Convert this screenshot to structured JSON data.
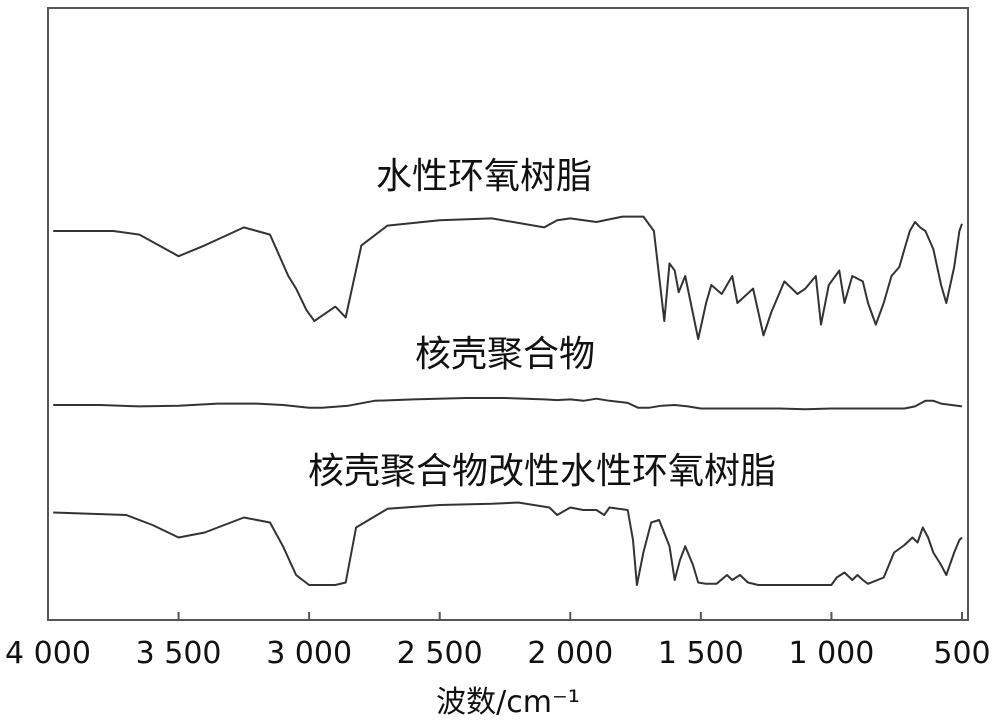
{
  "chart_data": {
    "type": "line",
    "xlabel": "波数/cm⁻¹",
    "ylabel": "",
    "xlim": [
      4000,
      500
    ],
    "x_reversed": true,
    "grid": false,
    "legend": "none",
    "xticks": [
      4000,
      3500,
      3000,
      2500,
      2000,
      1500,
      1000,
      500
    ],
    "xtick_labels": [
      "4 000",
      "3 500",
      "3 000",
      "2 500",
      "2 000",
      "1 500",
      "1 000",
      "500"
    ],
    "y_units": "arbitrary transmittance (higher = more transmittance)",
    "series": [
      {
        "name": "水性环氧树脂",
        "color": "#333333",
        "points": [
          [
            3980,
            0.8
          ],
          [
            3750,
            0.8
          ],
          [
            3650,
            0.78
          ],
          [
            3500,
            0.66
          ],
          [
            3400,
            0.72
          ],
          [
            3250,
            0.82
          ],
          [
            3150,
            0.78
          ],
          [
            3080,
            0.55
          ],
          [
            3050,
            0.48
          ],
          [
            3010,
            0.36
          ],
          [
            2980,
            0.3
          ],
          [
            2940,
            0.34
          ],
          [
            2900,
            0.38
          ],
          [
            2860,
            0.32
          ],
          [
            2800,
            0.72
          ],
          [
            2700,
            0.83
          ],
          [
            2500,
            0.86
          ],
          [
            2300,
            0.87
          ],
          [
            2100,
            0.82
          ],
          [
            2050,
            0.86
          ],
          [
            2000,
            0.87
          ],
          [
            1900,
            0.85
          ],
          [
            1800,
            0.88
          ],
          [
            1720,
            0.88
          ],
          [
            1680,
            0.8
          ],
          [
            1640,
            0.3
          ],
          [
            1620,
            0.62
          ],
          [
            1600,
            0.58
          ],
          [
            1585,
            0.46
          ],
          [
            1560,
            0.55
          ],
          [
            1510,
            0.2
          ],
          [
            1480,
            0.4
          ],
          [
            1460,
            0.5
          ],
          [
            1420,
            0.45
          ],
          [
            1380,
            0.55
          ],
          [
            1360,
            0.4
          ],
          [
            1300,
            0.48
          ],
          [
            1260,
            0.22
          ],
          [
            1230,
            0.35
          ],
          [
            1180,
            0.52
          ],
          [
            1130,
            0.45
          ],
          [
            1100,
            0.48
          ],
          [
            1060,
            0.55
          ],
          [
            1040,
            0.28
          ],
          [
            1010,
            0.5
          ],
          [
            970,
            0.58
          ],
          [
            950,
            0.4
          ],
          [
            920,
            0.55
          ],
          [
            880,
            0.52
          ],
          [
            860,
            0.4
          ],
          [
            830,
            0.28
          ],
          [
            800,
            0.4
          ],
          [
            770,
            0.55
          ],
          [
            740,
            0.6
          ],
          [
            720,
            0.7
          ],
          [
            700,
            0.8
          ],
          [
            680,
            0.85
          ],
          [
            660,
            0.82
          ],
          [
            640,
            0.8
          ],
          [
            610,
            0.7
          ],
          [
            580,
            0.5
          ],
          [
            560,
            0.4
          ],
          [
            530,
            0.6
          ],
          [
            510,
            0.8
          ],
          [
            500,
            0.84
          ]
        ]
      },
      {
        "name": "核壳聚合物",
        "color": "#333333",
        "points": [
          [
            3980,
            0.5
          ],
          [
            3800,
            0.5
          ],
          [
            3650,
            0.48
          ],
          [
            3500,
            0.49
          ],
          [
            3350,
            0.52
          ],
          [
            3200,
            0.52
          ],
          [
            3100,
            0.5
          ],
          [
            3000,
            0.46
          ],
          [
            2950,
            0.46
          ],
          [
            2850,
            0.49
          ],
          [
            2750,
            0.56
          ],
          [
            2600,
            0.58
          ],
          [
            2400,
            0.6
          ],
          [
            2250,
            0.6
          ],
          [
            2100,
            0.58
          ],
          [
            2050,
            0.57
          ],
          [
            2000,
            0.58
          ],
          [
            1950,
            0.56
          ],
          [
            1900,
            0.59
          ],
          [
            1850,
            0.56
          ],
          [
            1780,
            0.53
          ],
          [
            1740,
            0.46
          ],
          [
            1700,
            0.46
          ],
          [
            1650,
            0.49
          ],
          [
            1600,
            0.5
          ],
          [
            1550,
            0.48
          ],
          [
            1500,
            0.45
          ],
          [
            1400,
            0.45
          ],
          [
            1300,
            0.45
          ],
          [
            1200,
            0.45
          ],
          [
            1100,
            0.44
          ],
          [
            1000,
            0.45
          ],
          [
            900,
            0.45
          ],
          [
            800,
            0.45
          ],
          [
            720,
            0.45
          ],
          [
            680,
            0.48
          ],
          [
            640,
            0.56
          ],
          [
            610,
            0.56
          ],
          [
            580,
            0.52
          ],
          [
            540,
            0.5
          ],
          [
            500,
            0.48
          ]
        ]
      },
      {
        "name": "核壳聚合物改性水性环氧树脂",
        "color": "#333333",
        "points": [
          [
            3980,
            0.82
          ],
          [
            3700,
            0.8
          ],
          [
            3600,
            0.72
          ],
          [
            3500,
            0.62
          ],
          [
            3400,
            0.66
          ],
          [
            3250,
            0.78
          ],
          [
            3150,
            0.74
          ],
          [
            3100,
            0.55
          ],
          [
            3050,
            0.32
          ],
          [
            3000,
            0.24
          ],
          [
            2950,
            0.24
          ],
          [
            2900,
            0.24
          ],
          [
            2860,
            0.26
          ],
          [
            2820,
            0.7
          ],
          [
            2700,
            0.85
          ],
          [
            2500,
            0.88
          ],
          [
            2300,
            0.89
          ],
          [
            2200,
            0.9
          ],
          [
            2080,
            0.86
          ],
          [
            2050,
            0.8
          ],
          [
            2000,
            0.86
          ],
          [
            1950,
            0.84
          ],
          [
            1900,
            0.84
          ],
          [
            1870,
            0.8
          ],
          [
            1850,
            0.86
          ],
          [
            1780,
            0.84
          ],
          [
            1760,
            0.6
          ],
          [
            1745,
            0.24
          ],
          [
            1720,
            0.5
          ],
          [
            1690,
            0.74
          ],
          [
            1660,
            0.76
          ],
          [
            1620,
            0.55
          ],
          [
            1600,
            0.28
          ],
          [
            1580,
            0.44
          ],
          [
            1560,
            0.55
          ],
          [
            1530,
            0.4
          ],
          [
            1510,
            0.26
          ],
          [
            1480,
            0.25
          ],
          [
            1440,
            0.25
          ],
          [
            1400,
            0.32
          ],
          [
            1380,
            0.28
          ],
          [
            1350,
            0.32
          ],
          [
            1320,
            0.26
          ],
          [
            1280,
            0.24
          ],
          [
            1200,
            0.24
          ],
          [
            1100,
            0.24
          ],
          [
            1000,
            0.24
          ],
          [
            980,
            0.3
          ],
          [
            950,
            0.34
          ],
          [
            920,
            0.28
          ],
          [
            900,
            0.32
          ],
          [
            880,
            0.28
          ],
          [
            860,
            0.25
          ],
          [
            800,
            0.3
          ],
          [
            760,
            0.5
          ],
          [
            720,
            0.56
          ],
          [
            690,
            0.62
          ],
          [
            670,
            0.58
          ],
          [
            650,
            0.7
          ],
          [
            630,
            0.62
          ],
          [
            610,
            0.5
          ],
          [
            580,
            0.4
          ],
          [
            560,
            0.32
          ],
          [
            530,
            0.5
          ],
          [
            510,
            0.6
          ],
          [
            500,
            0.62
          ]
        ]
      }
    ]
  }
}
